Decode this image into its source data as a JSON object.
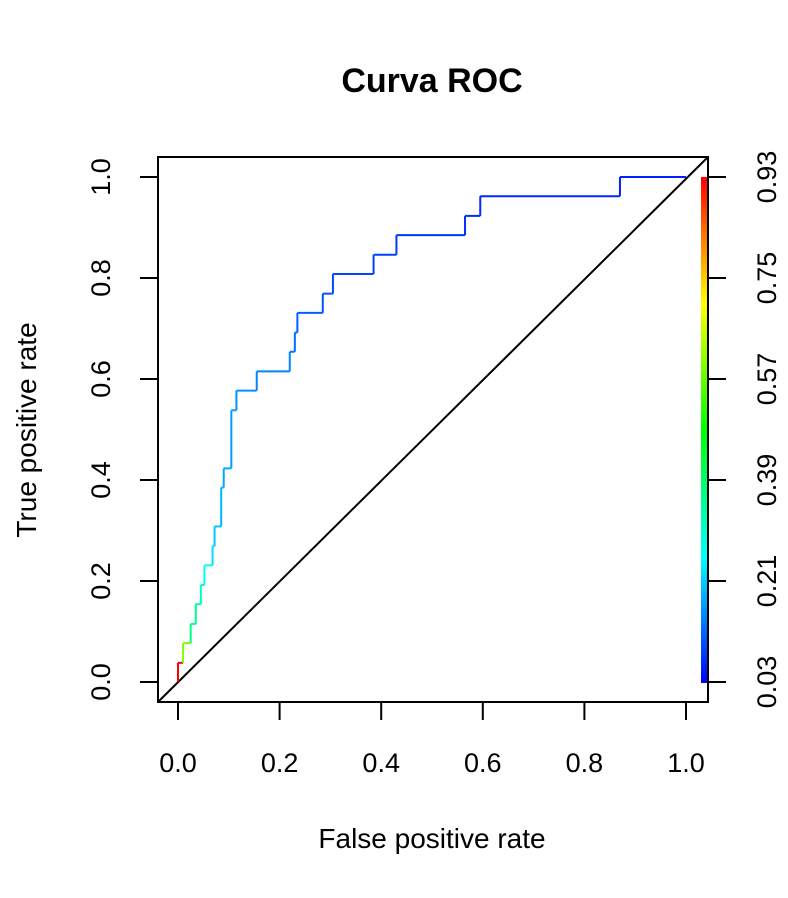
{
  "chart_data": {
    "type": "line",
    "title": "Curva ROC",
    "xlabel": "False positive rate",
    "ylabel": "True positive rate",
    "xlim": [
      0,
      1
    ],
    "ylim": [
      0,
      1
    ],
    "x_ticks": [
      "0.0",
      "0.2",
      "0.4",
      "0.6",
      "0.8",
      "1.0"
    ],
    "y_ticks": [
      "0.0",
      "0.2",
      "0.4",
      "0.6",
      "0.8",
      "1.0"
    ],
    "colorbar": {
      "ticks": [
        "0.03",
        "0.21",
        "0.39",
        "0.57",
        "0.75",
        "0.93"
      ],
      "colors": [
        "#0000ff",
        "#00ffff",
        "#00ff00",
        "#ffff00",
        "#ff0000"
      ]
    },
    "diagonal": {
      "from": [
        0,
        0
      ],
      "to": [
        1,
        1
      ],
      "color": "#000000"
    },
    "legend": "none",
    "grid": false,
    "series": [
      {
        "points": [
          [
            0.0,
            0.0
          ],
          [
            0.0,
            0.038
          ],
          [
            0.01,
            0.038
          ],
          [
            0.01,
            0.077
          ],
          [
            0.025,
            0.077
          ],
          [
            0.025,
            0.115
          ],
          [
            0.035,
            0.115
          ],
          [
            0.035,
            0.154
          ],
          [
            0.045,
            0.154
          ],
          [
            0.045,
            0.192
          ],
          [
            0.052,
            0.192
          ],
          [
            0.052,
            0.231
          ],
          [
            0.068,
            0.231
          ],
          [
            0.068,
            0.269
          ],
          [
            0.072,
            0.269
          ],
          [
            0.072,
            0.308
          ],
          [
            0.085,
            0.308
          ],
          [
            0.085,
            0.385
          ],
          [
            0.09,
            0.385
          ],
          [
            0.09,
            0.423
          ],
          [
            0.105,
            0.423
          ],
          [
            0.105,
            0.538
          ],
          [
            0.115,
            0.538
          ],
          [
            0.115,
            0.577
          ],
          [
            0.155,
            0.577
          ],
          [
            0.155,
            0.615
          ],
          [
            0.22,
            0.615
          ],
          [
            0.22,
            0.654
          ],
          [
            0.23,
            0.654
          ],
          [
            0.23,
            0.692
          ],
          [
            0.235,
            0.692
          ],
          [
            0.235,
            0.731
          ],
          [
            0.285,
            0.731
          ],
          [
            0.285,
            0.769
          ],
          [
            0.305,
            0.769
          ],
          [
            0.305,
            0.808
          ],
          [
            0.385,
            0.808
          ],
          [
            0.385,
            0.846
          ],
          [
            0.43,
            0.846
          ],
          [
            0.43,
            0.885
          ],
          [
            0.565,
            0.885
          ],
          [
            0.565,
            0.923
          ],
          [
            0.595,
            0.923
          ],
          [
            0.595,
            0.962
          ],
          [
            0.87,
            0.962
          ],
          [
            0.87,
            1.0
          ],
          [
            1.0,
            1.0
          ]
        ],
        "colors": [
          "#ff0000",
          "#80ff00",
          "#00ff80",
          "#00ff9a",
          "#00ffc0",
          "#00ffff",
          "#00ddff",
          "#00c8ff",
          "#00b4ff",
          "#00a8ff",
          "#009cff",
          "#0090ff",
          "#0084ff",
          "#0078ff",
          "#006cff",
          "#0060ff",
          "#0054ff",
          "#0048ff",
          "#0040ff",
          "#0038ff",
          "#0030ff",
          "#0028ff",
          "#0020ff"
        ]
      }
    ]
  }
}
